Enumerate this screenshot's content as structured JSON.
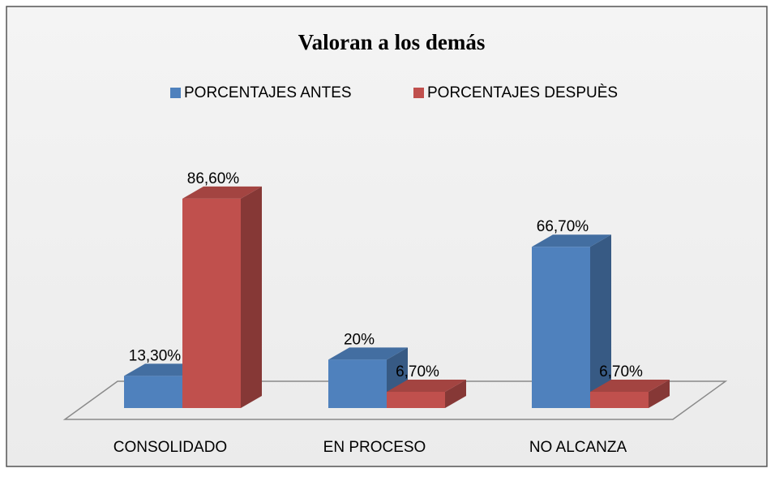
{
  "chart_data": {
    "type": "bar3d",
    "title": "Valoran a los demás",
    "categories": [
      "CONSOLIDADO",
      "EN PROCESO",
      "NO ALCANZA"
    ],
    "series": [
      {
        "name": "PORCENTAJES ANTES",
        "color": "#4f81bd",
        "values": [
          13.3,
          20,
          66.7
        ],
        "value_labels": [
          "13,30%",
          "20%",
          "66,70%"
        ]
      },
      {
        "name": "PORCENTAJES DESPUÈS",
        "color": "#c0504d",
        "values": [
          86.6,
          6.7,
          6.7
        ],
        "value_labels": [
          "86,60%",
          "6,70%",
          "6,70%"
        ]
      }
    ],
    "legend": "top"
  }
}
